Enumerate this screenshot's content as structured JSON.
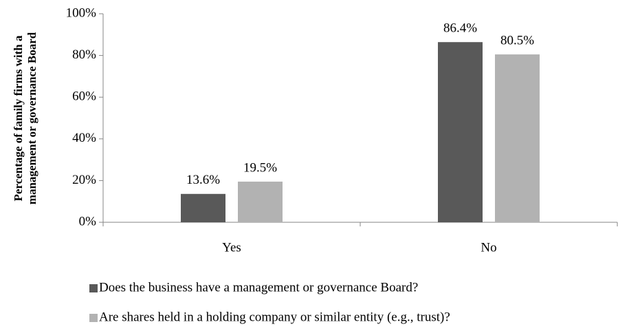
{
  "chart_data": {
    "type": "bar",
    "ylabel": [
      "Percentage of family firms with a",
      "management or governance Board"
    ],
    "categories": [
      "Yes",
      "No"
    ],
    "series": [
      {
        "name": "Does the business have a management or governance Board?",
        "color": "#595959",
        "values": [
          13.6,
          86.4
        ],
        "value_labels": [
          "13.6%",
          "86.4%"
        ]
      },
      {
        "name": "Are shares held in a holding company or similar entity (e.g., trust)?",
        "color": "#b2b2b2",
        "values": [
          19.5,
          80.5
        ],
        "value_labels": [
          "19.5%",
          "80.5%"
        ]
      }
    ],
    "ylim": [
      0,
      100
    ],
    "yticks": [
      {
        "value": 0,
        "label": "0%"
      },
      {
        "value": 20,
        "label": "20%"
      },
      {
        "value": 40,
        "label": "40%"
      },
      {
        "value": 60,
        "label": "60%"
      },
      {
        "value": 80,
        "label": "80%"
      },
      {
        "value": 100,
        "label": "100%"
      }
    ],
    "grid": false,
    "legend": "bottom"
  }
}
